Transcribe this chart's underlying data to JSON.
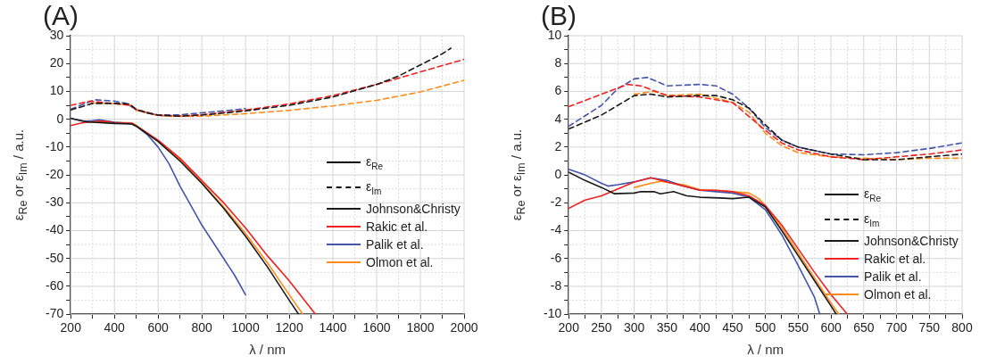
{
  "chart_data": [
    {
      "type": "line",
      "title": "(A)",
      "xlabel": "λ / nm",
      "ylabel": "ε$_{Re}$ or ε$_{Im}$ / a.u.",
      "annotations": [
        "ε$_{Re}$",
        "ε$_{Im}$"
      ],
      "xlim": [
        200,
        2000
      ],
      "ylim": [
        -70,
        30
      ],
      "xticks": [
        200,
        {
          "value": 300,
          "label": null
        },
        400,
        {
          "value": 500,
          "label": null
        },
        600,
        {
          "value": 700,
          "label": null
        },
        800,
        {
          "value": 900,
          "label": null
        },
        1000,
        {
          "value": 1100,
          "label": null
        },
        1200,
        {
          "value": 1300,
          "label": null
        },
        1400,
        {
          "value": 1500,
          "label": null
        },
        1600,
        {
          "value": 1700,
          "label": null
        },
        1800,
        {
          "value": 1900,
          "label": null
        },
        2000
      ],
      "yticks": [
        -70,
        {
          "value": -65,
          "label": null
        },
        -60,
        {
          "value": -55,
          "label": null
        },
        -50,
        {
          "value": -45,
          "label": null
        },
        -40,
        {
          "value": -35,
          "label": null
        },
        -30,
        {
          "value": -25,
          "label": null
        },
        -20,
        {
          "value": -15,
          "label": null
        },
        -10,
        {
          "value": -5,
          "label": null
        },
        0,
        {
          "value": 5,
          "label": null
        },
        10,
        {
          "value": 15,
          "label": null
        },
        20,
        {
          "value": 25,
          "label": null
        },
        30
      ],
      "grid": true,
      "legend": "right",
      "marker": "none",
      "series": [
        {
          "name": "Johnson&Christy",
          "color": "#1a1a1a",
          "line_style": "solid",
          "x": [
            200,
            280,
            400,
            480,
            500,
            600,
            700,
            800,
            900,
            1000,
            1100,
            1200,
            1243
          ],
          "values": [
            0.3,
            -1,
            -1.5,
            -1.7,
            -2.5,
            -8,
            -15,
            -23,
            -32,
            -42,
            -53,
            -65,
            -70
          ]
        },
        {
          "name": "Rakic et al.",
          "color": "#ee2222",
          "line_style": "solid",
          "x": [
            200,
            250,
            300,
            350,
            400,
            480,
            500,
            600,
            700,
            800,
            900,
            1000,
            1100,
            1200,
            1300,
            1320
          ],
          "values": [
            -2.3,
            -1.3,
            -0.9,
            -0.7,
            -1.3,
            -1.5,
            -2.3,
            -7.5,
            -14,
            -22,
            -30,
            -39,
            -49,
            -58,
            -68,
            -70
          ]
        },
        {
          "name": "Palik et al.",
          "color": "#4455aa",
          "line_style": "solid",
          "x": [
            200,
            260,
            300,
            330,
            400,
            480,
            500,
            550,
            600,
            650,
            700,
            750,
            800,
            850,
            900,
            950,
            1000
          ],
          "values": [
            0.4,
            -0.8,
            -0.5,
            -0.2,
            -1.1,
            -1.6,
            -2.5,
            -5.5,
            -10,
            -16,
            -24,
            -31,
            -38,
            -44,
            -50,
            -56,
            -63
          ]
        },
        {
          "name": "Olmon et al.",
          "color": "#ff8c1a",
          "line_style": "solid",
          "x": [
            300,
            350,
            400,
            480,
            500,
            600,
            700,
            800,
            900,
            1000,
            1100,
            1200,
            1262
          ],
          "values": [
            -0.9,
            -0.5,
            -1.1,
            -1.3,
            -2.2,
            -7.8,
            -14.5,
            -22.8,
            -31.5,
            -41,
            -51.5,
            -63,
            -70
          ]
        },
        {
          "color": "#1a1a1a",
          "line_style": "dashed",
          "x": [
            200,
            300,
            400,
            470,
            500,
            550,
            600,
            700,
            800,
            900,
            1000,
            1200,
            1400,
            1600,
            1700,
            1800,
            1900,
            1940
          ],
          "values": [
            3.3,
            5.7,
            5.7,
            5.5,
            3.5,
            2.2,
            1.5,
            1.1,
            1.5,
            2.2,
            3,
            5,
            8,
            12.5,
            15.5,
            19.5,
            23.5,
            25.5
          ]
        },
        {
          "color": "#ee2222",
          "line_style": "dashed",
          "x": [
            200,
            290,
            400,
            470,
            500,
            600,
            700,
            800,
            1000,
            1200,
            1400,
            1600,
            1800,
            2000
          ],
          "values": [
            5,
            6.5,
            5.6,
            5,
            3.5,
            1.4,
            1.2,
            1.6,
            3.3,
            5.5,
            8.5,
            12.5,
            17,
            21.5
          ]
        },
        {
          "color": "#4455aa",
          "line_style": "dashed",
          "x": [
            200,
            310,
            400,
            450,
            500,
            600,
            700,
            800,
            900,
            1000
          ],
          "values": [
            3.6,
            7,
            6.5,
            5.8,
            3.5,
            1.5,
            1.6,
            2.3,
            3,
            3.8
          ]
        },
        {
          "color": "#ff8c1a",
          "line_style": "dashed",
          "x": [
            300,
            400,
            470,
            500,
            600,
            700,
            800,
            1000,
            1200,
            1400,
            1600,
            1800,
            2000
          ],
          "values": [
            5.8,
            5.6,
            5.2,
            3.2,
            1.3,
            1,
            1.1,
            2,
            3.2,
            4.8,
            6.8,
            9.8,
            14
          ]
        }
      ]
    },
    {
      "type": "line",
      "title": "(B)",
      "xlabel": "λ / nm",
      "ylabel": "ε$_{Re}$ or ε$_{Im}$ / a.u.",
      "annotations": [
        "ε$_{Re}$",
        "ε$_{Im}$"
      ],
      "xlim": [
        200,
        800
      ],
      "ylim": [
        -10,
        10
      ],
      "legend": "bottom right",
      "xticks": [
        200,
        {
          "value": 225,
          "label": null
        },
        250,
        {
          "value": 275,
          "label": null
        },
        300,
        {
          "value": 325,
          "label": null
        },
        350,
        {
          "value": 375,
          "label": null
        },
        400,
        {
          "value": 425,
          "label": null
        },
        450,
        {
          "value": 475,
          "label": null
        },
        500,
        {
          "value": 525,
          "label": null
        },
        550,
        {
          "value": 575,
          "label": null
        },
        600,
        {
          "value": 625,
          "label": null
        },
        650,
        {
          "value": 675,
          "label": null
        },
        700,
        {
          "value": 725,
          "label": null
        },
        750,
        {
          "value": 775,
          "label": null
        },
        800
      ],
      "yticks": [
        -10,
        {
          "value": -9,
          "label": null
        },
        -8,
        {
          "value": -7,
          "label": null
        },
        -6,
        {
          "value": -5,
          "label": null
        },
        -4,
        {
          "value": -3,
          "label": null
        },
        -2,
        {
          "value": -1,
          "label": null
        },
        0,
        {
          "value": 1,
          "label": null
        },
        2,
        {
          "value": 3,
          "label": null
        },
        4,
        {
          "value": 5,
          "label": null
        },
        6,
        {
          "value": 7,
          "label": null
        },
        8,
        {
          "value": 9,
          "label": null
        },
        10
      ],
      "grid": true,
      "marker": "none",
      "series": [
        {
          "name": "Johnson&Christy",
          "color": "#1a1a1a",
          "line_style": "solid",
          "x": [
            200,
            225,
            250,
            270,
            300,
            310,
            330,
            340,
            360,
            380,
            400,
            430,
            450,
            475,
            500,
            525,
            550,
            575,
            600,
            608
          ],
          "values": [
            0.2,
            -0.4,
            -0.9,
            -1.35,
            -1.3,
            -1.2,
            -1.2,
            -1.35,
            -1.2,
            -1.5,
            -1.6,
            -1.65,
            -1.7,
            -1.6,
            -2.3,
            -4,
            -5.8,
            -7.6,
            -9.4,
            -10
          ]
        },
        {
          "name": "Rakic et al.",
          "color": "#ee2222",
          "line_style": "solid",
          "x": [
            200,
            225,
            250,
            275,
            300,
            325,
            350,
            375,
            400,
            425,
            450,
            475,
            500,
            525,
            550,
            575,
            600,
            625
          ],
          "values": [
            -2.4,
            -1.8,
            -1.5,
            -1,
            -0.5,
            -0.2,
            -0.5,
            -0.8,
            -1.1,
            -1.1,
            -1.2,
            -1.5,
            -2.2,
            -3.6,
            -5.3,
            -7,
            -8.6,
            -10
          ]
        },
        {
          "name": "Palik et al.",
          "color": "#4455aa",
          "line_style": "solid",
          "x": [
            200,
            225,
            250,
            260,
            275,
            300,
            325,
            350,
            375,
            400,
            425,
            450,
            475,
            500,
            525,
            550,
            575,
            583
          ],
          "values": [
            0.4,
            0,
            -0.6,
            -0.8,
            -0.7,
            -0.5,
            -0.2,
            -0.4,
            -0.8,
            -1.1,
            -1.2,
            -1.3,
            -1.6,
            -2.5,
            -4.3,
            -6.5,
            -8.8,
            -10
          ]
        },
        {
          "name": "Olmon et al.",
          "color": "#ff8c1a",
          "line_style": "solid",
          "x": [
            300,
            325,
            340,
            375,
            400,
            450,
            475,
            490,
            500,
            525,
            550,
            575,
            600,
            612
          ],
          "values": [
            -0.9,
            -0.6,
            -0.45,
            -0.7,
            -1.05,
            -1.2,
            -1.3,
            -1.7,
            -2.2,
            -3.8,
            -5.6,
            -7.4,
            -9.2,
            -10
          ]
        },
        {
          "color": "#1a1a1a",
          "line_style": "dashed",
          "x": [
            200,
            250,
            300,
            325,
            350,
            400,
            425,
            450,
            475,
            500,
            525,
            550,
            600,
            650,
            700,
            750,
            800
          ],
          "values": [
            3.3,
            4.3,
            5.7,
            5.8,
            5.6,
            5.7,
            5.7,
            5.4,
            4.8,
            3.6,
            2.5,
            2,
            1.5,
            1.1,
            1.1,
            1.3,
            1.5
          ]
        },
        {
          "color": "#ee2222",
          "line_style": "dashed",
          "x": [
            200,
            250,
            290,
            310,
            350,
            400,
            450,
            475,
            500,
            525,
            550,
            600,
            650,
            700,
            750,
            800
          ],
          "values": [
            4.9,
            5.8,
            6.5,
            6.4,
            5.7,
            5.6,
            5.2,
            4.2,
            3.2,
            2.3,
            1.8,
            1.3,
            1.1,
            1.3,
            1.5,
            1.8
          ]
        },
        {
          "color": "#4455aa",
          "line_style": "dashed",
          "x": [
            200,
            250,
            275,
            300,
            320,
            350,
            400,
            425,
            450,
            475,
            500,
            525,
            550,
            600,
            650,
            700,
            750,
            800
          ],
          "values": [
            3.5,
            5,
            6.2,
            6.9,
            7,
            6.4,
            6.5,
            6.4,
            5.8,
            4.8,
            3.4,
            2.5,
            2,
            1.5,
            1.45,
            1.6,
            1.9,
            2.3
          ]
        },
        {
          "color": "#ff8c1a",
          "line_style": "dashed",
          "x": [
            300,
            330,
            350,
            400,
            450,
            475,
            500,
            525,
            550,
            600,
            650,
            700,
            750,
            800
          ],
          "values": [
            5.8,
            6,
            5.7,
            5.8,
            5.2,
            4.5,
            3,
            2.1,
            1.6,
            1.3,
            1.2,
            1.1,
            1.2,
            1.2
          ]
        }
      ]
    }
  ]
}
